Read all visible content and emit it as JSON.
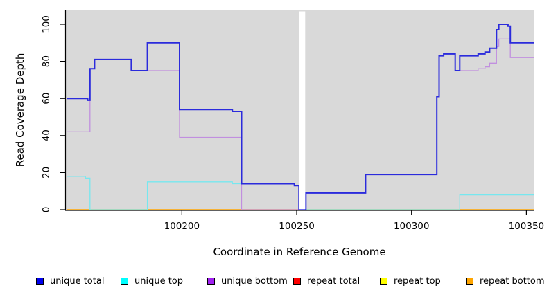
{
  "chart_data": {
    "type": "line",
    "step": true,
    "title": "",
    "xlabel": "Coordinate in Reference Genome",
    "ylabel": "Read Coverage Depth",
    "xlim": [
      100149.5,
      100353.2
    ],
    "ylim": [
      0,
      100
    ],
    "xticks": [
      100200,
      100250,
      100300,
      100350
    ],
    "yticks": [
      0,
      20,
      40,
      60,
      80,
      100
    ],
    "grid": false,
    "legend_position": "bottom",
    "panel_bg": "#D9D9D9",
    "panel_border": "#9E9E9E",
    "axis_color": "#000000",
    "gap": {
      "from": 100251.1,
      "to": 100253.7,
      "note": "white band, missing data"
    },
    "series": [
      {
        "name": "unique total",
        "legend_color": "#0000EE",
        "line_color": "#2B2BDC",
        "width": 2,
        "z": 6,
        "points": [
          [
            100150,
            60
          ],
          [
            100159,
            59
          ],
          [
            100160,
            76
          ],
          [
            100162,
            81
          ],
          [
            100178,
            75
          ],
          [
            100185,
            90
          ],
          [
            100199,
            54
          ],
          [
            100222,
            53
          ],
          [
            100226,
            14
          ],
          [
            100249,
            13
          ],
          [
            100251,
            0
          ],
          [
            100254,
            9
          ],
          [
            100280,
            19
          ],
          [
            100311,
            61
          ],
          [
            100312,
            83
          ],
          [
            100314,
            84
          ],
          [
            100319,
            75
          ],
          [
            100321,
            83
          ],
          [
            100329,
            84
          ],
          [
            100332,
            85
          ],
          [
            100334,
            87
          ],
          [
            100337,
            97
          ],
          [
            100338,
            100
          ],
          [
            100342,
            99
          ],
          [
            100343,
            90
          ],
          [
            100353.2,
            90
          ]
        ]
      },
      {
        "name": "unique top",
        "legend_color": "#00FFFF",
        "line_color": "#76E7EF",
        "width": 1.3,
        "z": 5,
        "points": [
          [
            100150,
            18
          ],
          [
            100158,
            17
          ],
          [
            100160,
            0
          ],
          [
            100185,
            15
          ],
          [
            100222,
            14
          ],
          [
            100249,
            13
          ],
          [
            100251,
            0
          ],
          [
            100321,
            8
          ],
          [
            100353.2,
            8
          ]
        ]
      },
      {
        "name": "unique bottom",
        "legend_color": "#A020F0",
        "line_color": "#C18FDF",
        "width": 1.3,
        "z": 4,
        "points": [
          [
            100150,
            42
          ],
          [
            100160,
            76
          ],
          [
            100162,
            81
          ],
          [
            100178,
            75
          ],
          [
            100199,
            39
          ],
          [
            100226,
            0
          ],
          [
            100254,
            9
          ],
          [
            100280,
            19
          ],
          [
            100311,
            61
          ],
          [
            100312,
            83
          ],
          [
            100314,
            84
          ],
          [
            100319,
            75
          ],
          [
            100329,
            76
          ],
          [
            100332,
            77
          ],
          [
            100334,
            79
          ],
          [
            100337,
            88
          ],
          [
            100338,
            92
          ],
          [
            100343,
            82
          ],
          [
            100353.2,
            82
          ]
        ]
      },
      {
        "name": "repeat total",
        "legend_color": "#FF0000",
        "line_color": "#E03030",
        "width": 1.1,
        "z": 1,
        "points": [
          [
            100150,
            0
          ],
          [
            100353.2,
            0
          ]
        ]
      },
      {
        "name": "repeat top",
        "legend_color": "#FFFF00",
        "line_color": "#F0F055",
        "width": 1.1,
        "z": 2,
        "points": [
          [
            100150,
            0
          ],
          [
            100353.2,
            0
          ]
        ]
      },
      {
        "name": "repeat bottom",
        "legend_color": "#FFA500",
        "line_color": "#FFA500",
        "width": 1.5,
        "z": 3,
        "points": [
          [
            100150,
            0
          ],
          [
            100353.2,
            0
          ]
        ]
      }
    ]
  }
}
